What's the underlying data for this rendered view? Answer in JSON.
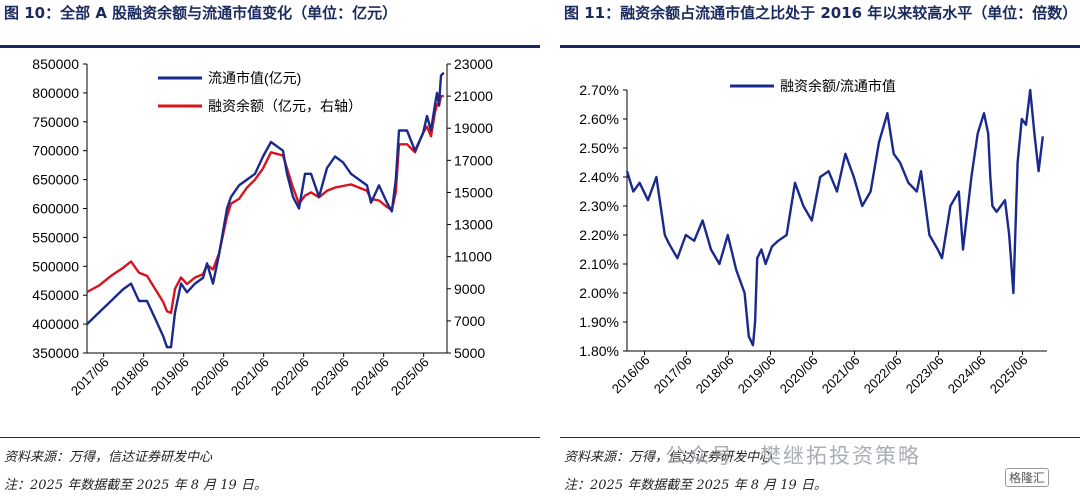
{
  "left": {
    "title": "图 10：全部 A 股融资余额与流通市值变化（单位：亿元）",
    "source": "资料来源：万得，信达证券研发中心",
    "note": "注：2025 年数据截至 2025 年 8 月 19 日。"
  },
  "right": {
    "title": "图 11：融资余额占流通市值之比处于 2016 年以来较高水平（单位：倍数）",
    "source": "资料来源：万得，信达证券研发中心",
    "note": "注：2025 年数据截至 2025 年 8 月 19 日。"
  },
  "watermark": {
    "text": "公众号 · 樊继拓投资策略",
    "badge": "格隆汇"
  },
  "colors": {
    "navy": "#1a2a8c",
    "red": "#d7141e",
    "title": "#1a2a5e"
  },
  "chart_data": [
    {
      "type": "line",
      "title": "全部 A 股融资余额与流通市值变化（单位：亿元）",
      "xlabel": "",
      "ylabel": "",
      "x_ticks": [
        "2017/06",
        "2018/06",
        "2019/06",
        "2020/06",
        "2021/06",
        "2022/06",
        "2023/06",
        "2024/06",
        "2025/06"
      ],
      "ylim": [
        350000,
        850000
      ],
      "y_ticks": [
        350000,
        400000,
        450000,
        500000,
        550000,
        600000,
        650000,
        700000,
        750000,
        800000,
        850000
      ],
      "y2lim": [
        5000,
        23000
      ],
      "y2_ticks": [
        5000,
        7000,
        9000,
        11000,
        13000,
        15000,
        17000,
        19000,
        21000,
        23000
      ],
      "legend": [
        "流通市值(亿元)",
        "融资余额（亿元，右轴）"
      ],
      "legend_position": "top-left",
      "series": [
        {
          "name": "流通市值(亿元)",
          "axis": "left",
          "x": [
            2017.0,
            2017.3,
            2017.6,
            2017.9,
            2018.1,
            2018.3,
            2018.5,
            2018.7,
            2018.9,
            2019.0,
            2019.1,
            2019.2,
            2019.35,
            2019.5,
            2019.7,
            2019.9,
            2020.0,
            2020.15,
            2020.3,
            2020.5,
            2020.6,
            2020.8,
            2021.0,
            2021.2,
            2021.4,
            2021.6,
            2021.9,
            2022.0,
            2022.15,
            2022.3,
            2022.45,
            2022.6,
            2022.8,
            2023.0,
            2023.2,
            2023.4,
            2023.6,
            2023.8,
            2024.0,
            2024.1,
            2024.3,
            2024.5,
            2024.62,
            2024.72,
            2024.8,
            2025.0,
            2025.2,
            2025.3,
            2025.4,
            2025.5,
            2025.6,
            2025.7,
            2025.75,
            2025.8,
            2025.85,
            2025.92
          ],
          "values": [
            400000,
            420000,
            440000,
            460000,
            470000,
            440000,
            440000,
            410000,
            380000,
            360000,
            360000,
            420000,
            470000,
            455000,
            470000,
            480000,
            505000,
            470000,
            520000,
            600000,
            620000,
            640000,
            650000,
            660000,
            690000,
            715000,
            700000,
            660000,
            620000,
            600000,
            660000,
            660000,
            620000,
            670000,
            690000,
            680000,
            660000,
            650000,
            640000,
            610000,
            640000,
            610000,
            595000,
            650000,
            735000,
            735000,
            700000,
            715000,
            730000,
            760000,
            735000,
            780000,
            800000,
            780000,
            830000,
            835000
          ]
        },
        {
          "name": "融资余额（亿元，右轴）",
          "axis": "right",
          "x": [
            2017.0,
            2017.3,
            2017.6,
            2017.9,
            2018.1,
            2018.3,
            2018.5,
            2018.7,
            2018.9,
            2019.0,
            2019.1,
            2019.2,
            2019.35,
            2019.5,
            2019.7,
            2019.9,
            2020.0,
            2020.15,
            2020.3,
            2020.5,
            2020.6,
            2020.8,
            2021.0,
            2021.2,
            2021.4,
            2021.6,
            2021.9,
            2022.0,
            2022.15,
            2022.3,
            2022.45,
            2022.6,
            2022.8,
            2023.0,
            2023.2,
            2023.4,
            2023.6,
            2023.8,
            2024.0,
            2024.1,
            2024.3,
            2024.5,
            2024.62,
            2024.72,
            2024.8,
            2025.0,
            2025.2,
            2025.3,
            2025.4,
            2025.5,
            2025.6,
            2025.7,
            2025.75,
            2025.8,
            2025.85,
            2025.92
          ],
          "values": [
            8800,
            9200,
            9800,
            10300,
            10700,
            10000,
            9800,
            9000,
            8200,
            7600,
            7500,
            9000,
            9700,
            9300,
            9700,
            9900,
            10500,
            10200,
            11200,
            13500,
            14300,
            14600,
            15300,
            15800,
            16500,
            17500,
            17300,
            16500,
            15300,
            14300,
            14800,
            15000,
            14700,
            15100,
            15300,
            15400,
            15500,
            15300,
            15100,
            14600,
            14500,
            14100,
            13900,
            15000,
            18000,
            18000,
            17500,
            18100,
            18700,
            19100,
            18500,
            20000,
            20500,
            20400,
            21000,
            21000
          ]
        }
      ]
    },
    {
      "type": "line",
      "title": "融资余额占流通市值之比（单位：倍数）",
      "xlabel": "",
      "ylabel": "",
      "x_ticks": [
        "2016/06",
        "2017/06",
        "2018/06",
        "2019/06",
        "2020/06",
        "2021/06",
        "2022/06",
        "2023/06",
        "2024/06",
        "2025/06"
      ],
      "ylim": [
        1.8,
        2.7
      ],
      "y_ticks": [
        "1.80%",
        "1.90%",
        "2.00%",
        "2.10%",
        "2.20%",
        "2.30%",
        "2.40%",
        "2.50%",
        "2.60%",
        "2.70%"
      ],
      "legend": [
        "融资余额/流通市值"
      ],
      "legend_position": "top",
      "series": [
        {
          "name": "融资余额/流通市值",
          "x": [
            2016.0,
            2016.15,
            2016.3,
            2016.5,
            2016.7,
            2016.9,
            2017.0,
            2017.2,
            2017.4,
            2017.6,
            2017.8,
            2018.0,
            2018.2,
            2018.4,
            2018.6,
            2018.8,
            2018.9,
            2019.0,
            2019.05,
            2019.1,
            2019.2,
            2019.3,
            2019.45,
            2019.6,
            2019.8,
            2020.0,
            2020.2,
            2020.4,
            2020.6,
            2020.8,
            2021.0,
            2021.2,
            2021.4,
            2021.6,
            2021.8,
            2022.0,
            2022.2,
            2022.35,
            2022.5,
            2022.7,
            2022.9,
            2023.0,
            2023.2,
            2023.4,
            2023.5,
            2023.7,
            2023.9,
            2024.0,
            2024.2,
            2024.35,
            2024.5,
            2024.6,
            2024.65,
            2024.7,
            2024.8,
            2025.0,
            2025.1,
            2025.2,
            2025.3,
            2025.4,
            2025.5,
            2025.6,
            2025.7,
            2025.8,
            2025.9
          ],
          "values": [
            2.42,
            2.35,
            2.38,
            2.32,
            2.4,
            2.2,
            2.17,
            2.12,
            2.2,
            2.18,
            2.25,
            2.15,
            2.1,
            2.2,
            2.08,
            2.0,
            1.85,
            1.82,
            1.9,
            2.12,
            2.15,
            2.1,
            2.16,
            2.18,
            2.2,
            2.38,
            2.3,
            2.25,
            2.4,
            2.42,
            2.35,
            2.48,
            2.4,
            2.3,
            2.35,
            2.52,
            2.62,
            2.48,
            2.45,
            2.38,
            2.35,
            2.42,
            2.2,
            2.15,
            2.12,
            2.3,
            2.35,
            2.15,
            2.4,
            2.55,
            2.62,
            2.55,
            2.4,
            2.3,
            2.28,
            2.32,
            2.2,
            2.0,
            2.45,
            2.6,
            2.58,
            2.7,
            2.55,
            2.42,
            2.54
          ]
        }
      ]
    }
  ]
}
